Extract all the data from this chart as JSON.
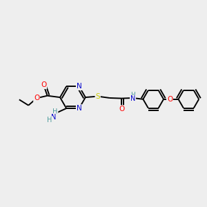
{
  "bg_color": "#eeeeee",
  "atom_colors": {
    "C": "#000000",
    "N": "#0000cc",
    "O": "#ff0000",
    "S": "#cccc00",
    "H": "#4a9a9a"
  },
  "bond_color": "#000000",
  "bond_width": 1.4,
  "font_size": 7.5
}
